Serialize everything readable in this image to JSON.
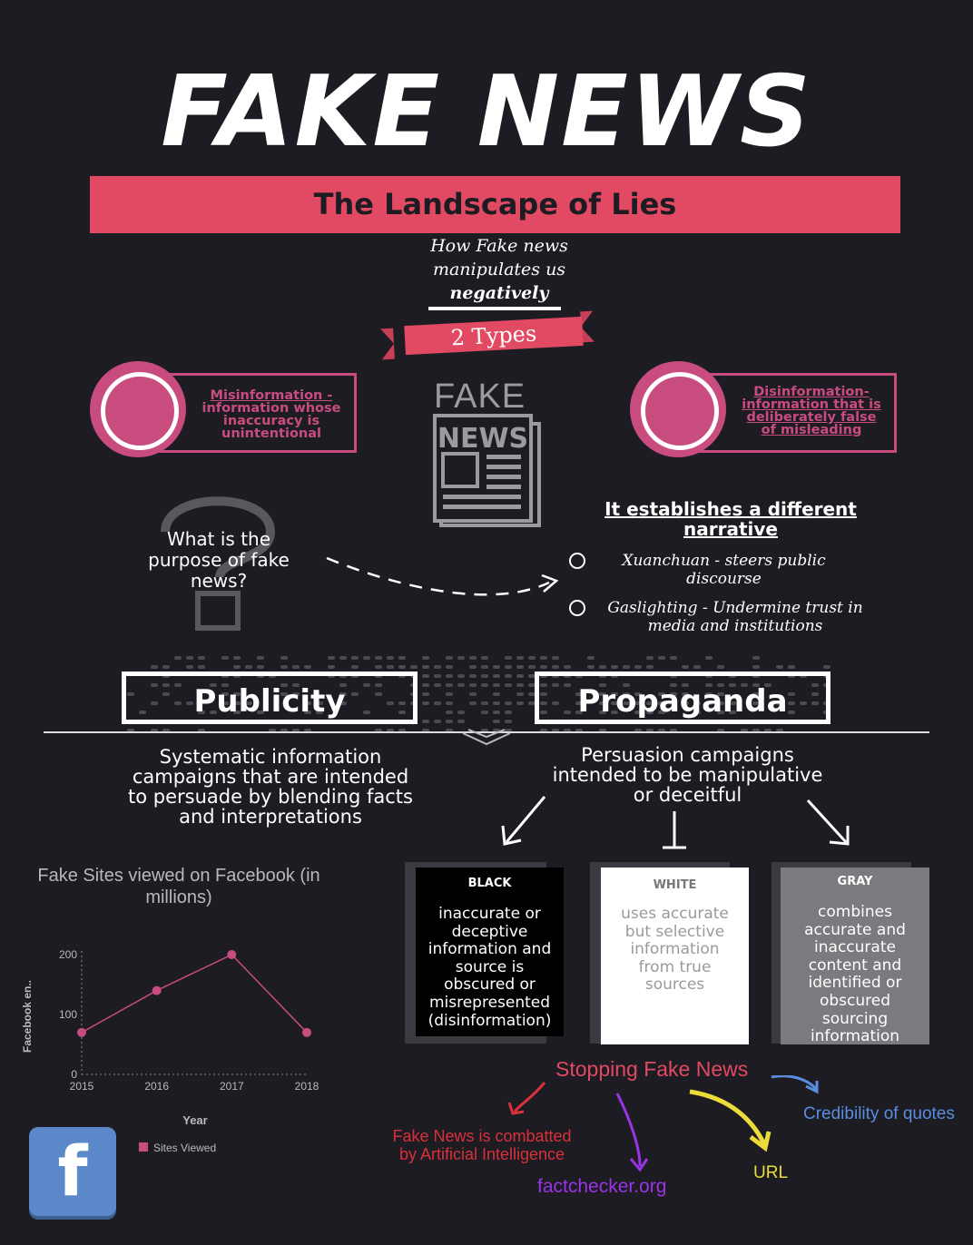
{
  "header": {
    "title": "FAKE NEWS",
    "subtitle": "The Landscape of Lies",
    "tagline_line1": "How Fake news",
    "tagline_line2": "manipulates us",
    "tagline_line3": "negatively",
    "types_label": "2 Types"
  },
  "colors": {
    "background": "#1c1c22",
    "accent_red": "#e24a63",
    "accent_pink": "#c94c7f"
  },
  "types": {
    "misinformation": {
      "title": "Misinformation -",
      "l2": "information whose",
      "l3": "inaccuracy is",
      "l4": "unintentional"
    },
    "disinformation": {
      "title": "Disinformation-",
      "l2": "information that is",
      "l3": "deliberately false",
      "l4": "of misleading"
    }
  },
  "newspaper_icon": {
    "fake_word": "FAKE",
    "news_word": "NEWS",
    "icon": "newspaper-icon"
  },
  "purpose": {
    "question_l1": "What is the",
    "question_l2": "purpose of fake",
    "question_l3": "news?",
    "answer_l1": "It establishes a different",
    "answer_l2": "narrative",
    "points": [
      {
        "l1": "Xuanchuan - steers public",
        "l2": "discourse"
      },
      {
        "l1": "Gaslighting - Undermine trust in",
        "l2": "media and institutions"
      }
    ]
  },
  "publicity": {
    "label": "Publicity",
    "l1": "Systematic information",
    "l2": "campaigns that are intended",
    "l3": "to persuade by blending facts",
    "l4": "and interpretations"
  },
  "propaganda": {
    "label": "Propaganda",
    "l1": "Persuasion campaigns",
    "l2": "intended to be manipulative",
    "l3": "or deceitful"
  },
  "propaganda_types": [
    {
      "title": "BLACK",
      "lines": [
        "inaccurate or",
        "deceptive",
        "information and",
        "source is",
        "obscured or",
        "misrepresented",
        "(disinformation)"
      ]
    },
    {
      "title": "WHITE",
      "lines": [
        "uses accurate",
        "but selective",
        "information",
        "from true",
        "sources"
      ]
    },
    {
      "title": "GRAY",
      "lines": [
        "combines",
        "accurate and",
        "inaccurate",
        "content and",
        "identified or",
        "obscured",
        "sourcing",
        "information"
      ]
    }
  ],
  "chart_data": {
    "type": "line",
    "title": "Fake Sites viewed on Facebook (in millions)",
    "xlabel": "Year",
    "ylabel": "Facebook en..",
    "categories": [
      "2015",
      "2016",
      "2017",
      "2018"
    ],
    "series": [
      {
        "name": "Sites Viewed",
        "values": [
          70,
          140,
          200,
          70
        ],
        "color": "#c94c7f"
      }
    ],
    "ylim": [
      0,
      200
    ],
    "yticks": [
      "0",
      "100",
      "200"
    ],
    "legend_position": "bottom",
    "grid": false
  },
  "stopping": {
    "title": "Stopping Fake News",
    "ai_l1": "Fake News is combatted",
    "ai_l2": "by Artificial Intelligence",
    "factchecker": "factchecker.org",
    "url": "URL",
    "quotes": "Credibility of quotes",
    "colors": {
      "ai": "#d9303a",
      "factchecker": "#9b33e6",
      "url": "#ecdc3a",
      "quotes": "#5b8ddf"
    }
  },
  "facebook_icon": {
    "letter": "f"
  }
}
